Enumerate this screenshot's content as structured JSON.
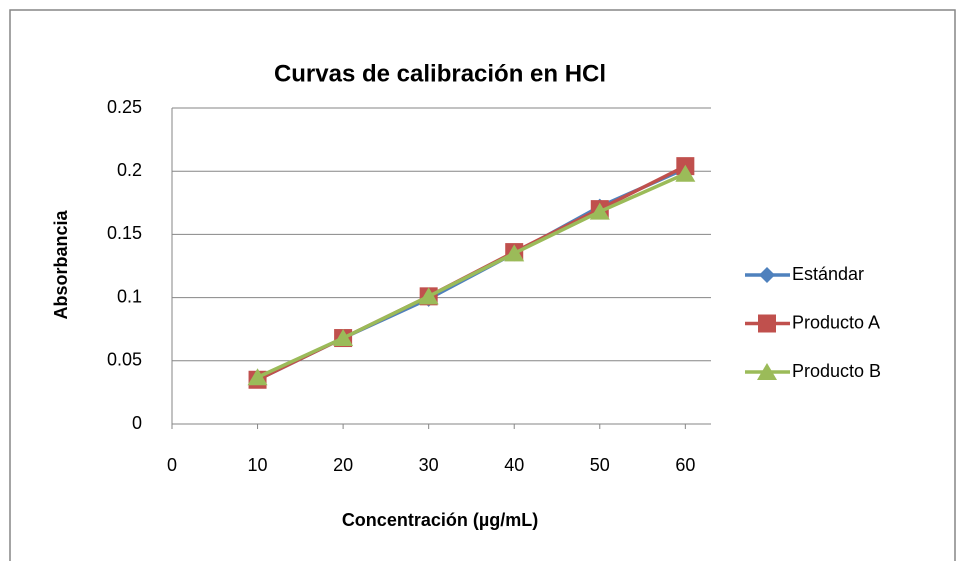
{
  "chart_data": {
    "type": "line",
    "title": "Curvas de calibración en HCl",
    "xlabel": "Concentración (µg/mL)",
    "ylabel": "Absorbancia",
    "x": [
      10,
      20,
      30,
      40,
      50,
      60
    ],
    "series": [
      {
        "name": "Estándar",
        "color": "#4f81bd",
        "marker": "diamond",
        "values": [
          0.035,
          0.068,
          0.099,
          0.135,
          0.172,
          0.202
        ]
      },
      {
        "name": "Producto A",
        "color": "#c0504d",
        "marker": "square",
        "values": [
          0.035,
          0.068,
          0.101,
          0.136,
          0.17,
          0.204
        ]
      },
      {
        "name": "Producto B",
        "color": "#9bbb59",
        "marker": "triangle",
        "values": [
          0.037,
          0.068,
          0.101,
          0.135,
          0.168,
          0.198
        ]
      }
    ],
    "xlim": [
      0,
      63
    ],
    "xticks": [
      0,
      10,
      20,
      30,
      40,
      50,
      60
    ],
    "ylim": [
      0,
      0.25
    ],
    "yticks": [
      0,
      0.05,
      0.1,
      0.15,
      0.2,
      0.25
    ],
    "grid": true,
    "legend": "right"
  }
}
